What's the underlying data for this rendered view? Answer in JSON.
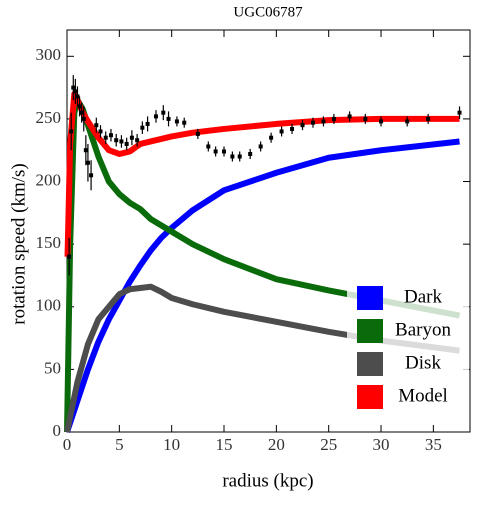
{
  "chart_data": {
    "type": "line",
    "title": "UGC06787",
    "x_label": "radius (kpc)",
    "y_label": "rotation speed (km/s)",
    "xlim": [
      0,
      38.5
    ],
    "ylim": [
      0,
      321
    ],
    "xticks": [
      0,
      5,
      10,
      15,
      20,
      25,
      30,
      35
    ],
    "yticks": [
      0,
      50,
      100,
      150,
      200,
      250,
      300
    ],
    "legend": "bottom-right",
    "series": [
      {
        "name": "Dark",
        "color": "#0000ff",
        "x": [
          0,
          1,
          2,
          3,
          4,
          5,
          6,
          7,
          8,
          9,
          10,
          12,
          15,
          20,
          25,
          30,
          37.5
        ],
        "values": [
          0,
          25,
          50,
          72,
          90,
          105,
          120,
          133,
          145,
          155,
          163,
          177,
          193,
          207,
          219,
          225,
          232
        ]
      },
      {
        "name": "Baryon",
        "color": "#0a6b0a",
        "x": [
          0,
          0.3,
          0.7,
          1,
          1.5,
          2,
          3,
          4,
          5,
          6,
          7,
          8,
          10,
          12,
          15,
          20,
          25,
          30,
          37.5
        ],
        "values": [
          0,
          150,
          255,
          265,
          258,
          245,
          220,
          200,
          190,
          183,
          178,
          170,
          160,
          150,
          138,
          122,
          113,
          105,
          93
        ]
      },
      {
        "name": "Disk",
        "color": "#4d4d4d",
        "x": [
          0,
          1,
          2,
          3,
          4,
          5,
          6,
          7,
          8,
          9,
          10,
          12,
          15,
          20,
          25,
          30,
          37.5
        ],
        "values": [
          0,
          40,
          70,
          90,
          100,
          110,
          114,
          115,
          116,
          112,
          107,
          102,
          96,
          88,
          80,
          73,
          65
        ]
      },
      {
        "name": "Model",
        "color": "#ff0000",
        "x": [
          0.05,
          0.3,
          0.7,
          1,
          1.5,
          2,
          3,
          4,
          5,
          6,
          7,
          8,
          10,
          12,
          15,
          20,
          25,
          30,
          37.5
        ],
        "values": [
          140,
          230,
          270,
          265,
          255,
          248,
          235,
          225,
          222,
          224,
          230,
          232,
          236,
          239,
          242,
          246,
          249,
          250,
          250
        ]
      }
    ],
    "points": {
      "color": "#000000",
      "x": [
        0.2,
        0.4,
        0.6,
        0.8,
        1.0,
        1.2,
        1.4,
        1.6,
        1.8,
        2.0,
        2.3,
        2.8,
        3.2,
        3.7,
        4.2,
        4.7,
        5.2,
        5.7,
        6.2,
        6.7,
        7.2,
        7.7,
        8.5,
        9.2,
        9.7,
        10.5,
        11.2,
        12.5,
        13.5,
        14.2,
        15.0,
        15.8,
        16.5,
        17.5,
        18.5,
        19.5,
        20.5,
        21.5,
        22.5,
        23.5,
        24.5,
        25.5,
        27,
        28.5,
        30,
        32.5,
        34.5,
        37.5
      ],
      "values": [
        140,
        240,
        275,
        272,
        268,
        260,
        255,
        250,
        225,
        215,
        205,
        245,
        240,
        235,
        237,
        233,
        232,
        230,
        235,
        233,
        243,
        246,
        252,
        255,
        250,
        248,
        247,
        238,
        228,
        224,
        224,
        220,
        220,
        222,
        228,
        235,
        240,
        242,
        245,
        247,
        248,
        250,
        252,
        250,
        248,
        248,
        250,
        255
      ],
      "errors": [
        15,
        15,
        10,
        10,
        8,
        8,
        8,
        10,
        12,
        15,
        12,
        6,
        5,
        5,
        5,
        5,
        5,
        5,
        6,
        5,
        5,
        6,
        5,
        6,
        6,
        4,
        4,
        4,
        4,
        4,
        4,
        4,
        4,
        4,
        4,
        4,
        4,
        4,
        4,
        4,
        4,
        4,
        4,
        4,
        4,
        4,
        4,
        5
      ]
    }
  }
}
